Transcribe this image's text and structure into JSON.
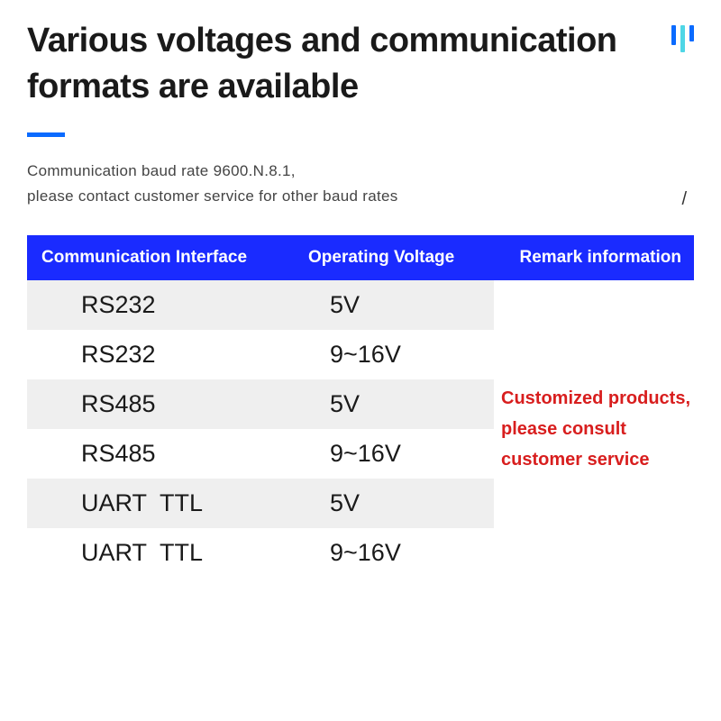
{
  "title": "Various voltages and communication formats are available",
  "deco_bars": [
    {
      "color": "#0a6bff",
      "height": 22
    },
    {
      "color": "#4fd6e6",
      "height": 30
    },
    {
      "color": "#0a6bff",
      "height": 18
    }
  ],
  "underline_color": "#0a6bff",
  "subtitle_line1": "Communication baud rate 9600.N.8.1,",
  "subtitle_line2": "please contact customer service for other baud rates",
  "slash": "/",
  "table": {
    "header_bg": "#1a2bff",
    "header_fg": "#ffffff",
    "shade_bg": "#efefef",
    "columns": [
      "Communication Interface",
      "Operating Voltage",
      "Remark information"
    ],
    "rows": [
      {
        "interface": "RS232",
        "voltage": "5V",
        "shaded": true
      },
      {
        "interface": "RS232",
        "voltage": "9~16V",
        "shaded": false
      },
      {
        "interface": "RS485",
        "voltage": "5V",
        "shaded": true
      },
      {
        "interface": "RS485",
        "voltage": "9~16V",
        "shaded": false
      },
      {
        "interface": "UART  TTL",
        "voltage": "5V",
        "shaded": true
      },
      {
        "interface": "UART  TTL",
        "voltage": "9~16V",
        "shaded": false
      }
    ],
    "remark_text": "Customized products, please consult customer service",
    "remark_color": "#d81e1e"
  }
}
